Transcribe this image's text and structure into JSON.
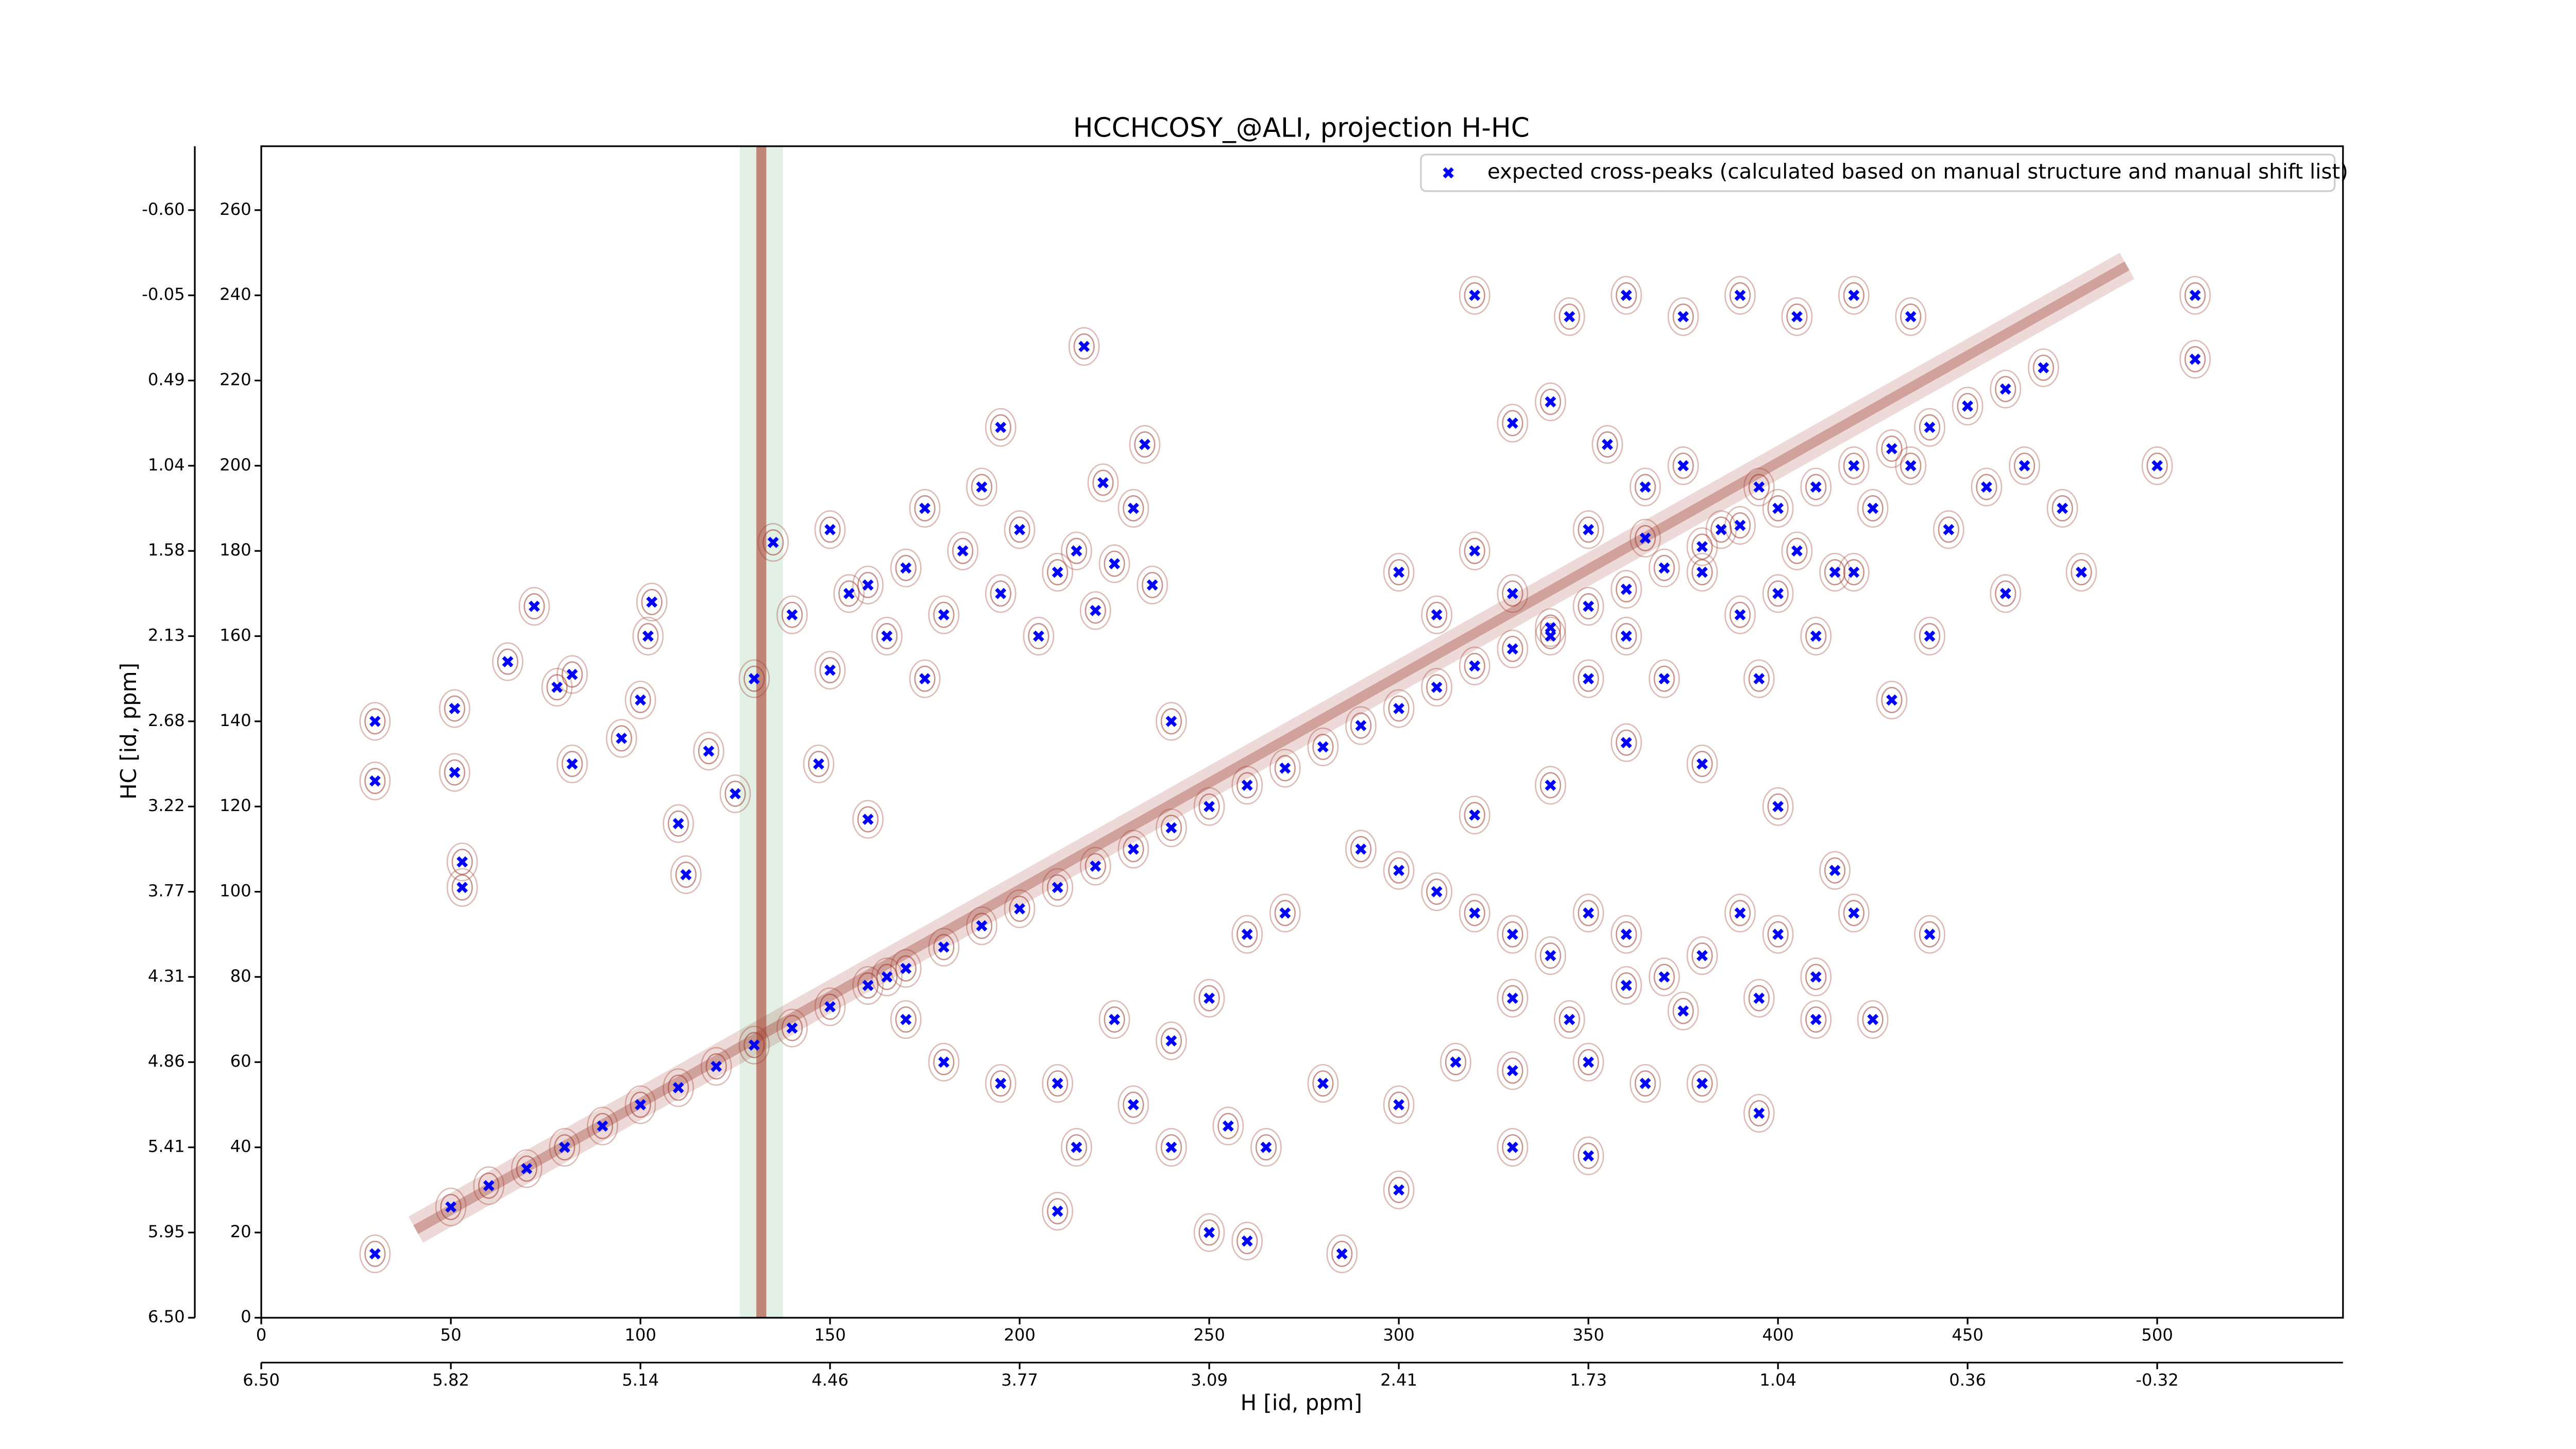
{
  "chart_data": {
    "type": "scatter",
    "title": "HCCHCOSY_@ALI, projection H-HC",
    "xlabel": "H [id, ppm]",
    "ylabel": "HC [id, ppm]",
    "xlim": [
      0,
      549
    ],
    "ylim": [
      0,
      275
    ],
    "xticks": [
      0,
      50,
      100,
      150,
      200,
      250,
      300,
      350,
      400,
      450,
      500
    ],
    "yticks": [
      0,
      20,
      40,
      60,
      80,
      100,
      120,
      140,
      160,
      180,
      200,
      220,
      240,
      260
    ],
    "x2ticks": [
      {
        "value": 0,
        "label": "6.50"
      },
      {
        "value": 50,
        "label": "5.82"
      },
      {
        "value": 100,
        "label": "5.14"
      },
      {
        "value": 150,
        "label": "4.46"
      },
      {
        "value": 200,
        "label": "3.77"
      },
      {
        "value": 250,
        "label": "3.09"
      },
      {
        "value": 300,
        "label": "2.41"
      },
      {
        "value": 350,
        "label": "1.73"
      },
      {
        "value": 400,
        "label": "1.04"
      },
      {
        "value": 450,
        "label": "0.36"
      },
      {
        "value": 500,
        "label": "-0.32"
      }
    ],
    "y2ticks": [
      {
        "value": 0,
        "label": "6.50"
      },
      {
        "value": 20,
        "label": "5.95"
      },
      {
        "value": 40,
        "label": "5.41"
      },
      {
        "value": 60,
        "label": "4.86"
      },
      {
        "value": 80,
        "label": "4.31"
      },
      {
        "value": 100,
        "label": "3.77"
      },
      {
        "value": 120,
        "label": "3.22"
      },
      {
        "value": 140,
        "label": "2.68"
      },
      {
        "value": 160,
        "label": "2.13"
      },
      {
        "value": 180,
        "label": "1.58"
      },
      {
        "value": 200,
        "label": "1.04"
      },
      {
        "value": 220,
        "label": "0.49"
      },
      {
        "value": 240,
        "label": "-0.05"
      },
      {
        "value": 260,
        "label": "-0.60"
      }
    ],
    "legend": "upper right",
    "series": [
      {
        "name": "expected cross-peaks (calculated based on manual structure and manual shift list)",
        "color": "#0000ff",
        "x": [
          50,
          60,
          70,
          80,
          90,
          100,
          110,
          120,
          130,
          140,
          150,
          160,
          170,
          180,
          190,
          200,
          210,
          220,
          230,
          240,
          250,
          260,
          270,
          280,
          290,
          300,
          310,
          320,
          330,
          340,
          350,
          360,
          370,
          380,
          390,
          400,
          410,
          420,
          430,
          440,
          450,
          460,
          470,
          30,
          30,
          51,
          51,
          53,
          53,
          65,
          72,
          78,
          82,
          82,
          95,
          100,
          102,
          103,
          110,
          112,
          118,
          125,
          130,
          135,
          150,
          155,
          160,
          165,
          170,
          175,
          180,
          185,
          190,
          195,
          200,
          205,
          210,
          215,
          220,
          225,
          230,
          235,
          240,
          233,
          222,
          217,
          195,
          175,
          150,
          140,
          147,
          160,
          320,
          345,
          360,
          375,
          390,
          405,
          420,
          435,
          330,
          340,
          355,
          365,
          375,
          385,
          395,
          405,
          415,
          425,
          435,
          445,
          455,
          465,
          475,
          500,
          510,
          510,
          320,
          330,
          340,
          350,
          310,
          300,
          360,
          370,
          380,
          390,
          400,
          410,
          420,
          440,
          460,
          480,
          430,
          395,
          350,
          365,
          310,
          320,
          330,
          340,
          350,
          360,
          370,
          380,
          390,
          400,
          410,
          420,
          330,
          345,
          360,
          375,
          395,
          410,
          425,
          440,
          415,
          400,
          380,
          360,
          340,
          320,
          300,
          290,
          270,
          260,
          250,
          240,
          225,
          210,
          195,
          180,
          170,
          165,
          240,
          255,
          265,
          280,
          300,
          315,
          330,
          350,
          365,
          380,
          395,
          350,
          285,
          260,
          210,
          30,
          215,
          230,
          250,
          300,
          330
        ],
        "values": [
          26,
          31,
          35,
          40,
          45,
          50,
          54,
          59,
          64,
          68,
          73,
          78,
          82,
          87,
          92,
          96,
          101,
          106,
          110,
          115,
          120,
          125,
          129,
          134,
          139,
          143,
          148,
          153,
          157,
          162,
          167,
          171,
          176,
          181,
          186,
          190,
          195,
          200,
          204,
          209,
          214,
          218,
          223,
          140,
          126,
          143,
          128,
          107,
          101,
          154,
          167,
          148,
          151,
          130,
          136,
          145,
          160,
          168,
          116,
          104,
          133,
          123,
          150,
          182,
          185,
          170,
          172,
          160,
          176,
          190,
          165,
          180,
          195,
          170,
          185,
          160,
          175,
          180,
          166,
          177,
          190,
          172,
          140,
          205,
          196,
          228,
          209,
          150,
          152,
          165,
          130,
          117,
          240,
          235,
          240,
          235,
          240,
          235,
          240,
          235,
          210,
          215,
          205,
          195,
          200,
          185,
          195,
          180,
          175,
          190,
          200,
          185,
          195,
          200,
          190,
          200,
          240,
          225,
          180,
          170,
          160,
          150,
          165,
          175,
          160,
          150,
          175,
          165,
          170,
          160,
          175,
          160,
          170,
          175,
          145,
          150,
          185,
          183,
          100,
          95,
          90,
          85,
          95,
          90,
          80,
          85,
          95,
          90,
          80,
          95,
          75,
          70,
          78,
          72,
          75,
          70,
          70,
          90,
          105,
          120,
          130,
          135,
          125,
          118,
          105,
          110,
          95,
          90,
          75,
          65,
          70,
          55,
          55,
          60,
          70,
          80,
          40,
          45,
          40,
          55,
          50,
          60,
          58,
          60,
          55,
          55,
          48,
          38,
          15,
          18,
          25,
          15,
          40,
          50,
          20,
          30,
          40
        ]
      }
    ]
  }
}
